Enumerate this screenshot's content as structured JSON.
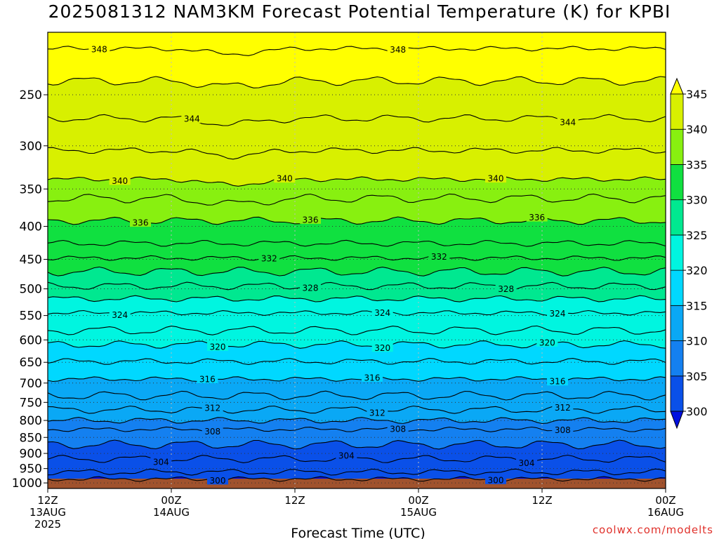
{
  "title": "2025081312 NAM3KM Forecast Potential Temperature (K) for KPBI",
  "credit": "coolwx.com/modelts",
  "chart_data": {
    "type": "heatmap",
    "title": "2025081312 NAM3KM Forecast Potential Temperature (K) for KPBI",
    "xlabel": "Forecast Time (UTC)",
    "ylabel": "",
    "x_ticks": [
      {
        "hour": 0,
        "lines": [
          "12Z",
          "13AUG",
          "2025"
        ]
      },
      {
        "hour": 12,
        "lines": [
          "00Z",
          "14AUG"
        ]
      },
      {
        "hour": 24,
        "lines": [
          "12Z"
        ]
      },
      {
        "hour": 36,
        "lines": [
          "00Z",
          "15AUG"
        ]
      },
      {
        "hour": 48,
        "lines": [
          "12Z"
        ]
      },
      {
        "hour": 60,
        "lines": [
          "00Z",
          "16AUG"
        ]
      }
    ],
    "xlim": [
      0,
      60
    ],
    "y_ticks": [
      250,
      300,
      350,
      400,
      450,
      500,
      550,
      600,
      650,
      700,
      750,
      800,
      850,
      900,
      950,
      1000
    ],
    "ylim": [
      1020,
      200
    ],
    "y_scale": "log-pressure",
    "grid": true,
    "colorbar": {
      "levels": [
        300,
        305,
        310,
        315,
        320,
        325,
        330,
        335,
        340,
        345
      ],
      "colors": [
        "#0010e0",
        "#0a50e8",
        "#1480f0",
        "#0aa8f5",
        "#00d8ff",
        "#00f5e0",
        "#00e890",
        "#10e040",
        "#88f010",
        "#d8f000",
        "#ffff00"
      ],
      "placement": "right"
    },
    "contour_interval": 2,
    "contours": [
      {
        "value": 300,
        "p": 986,
        "labels": [
          {
            "hour": 16.5,
            "text": "300"
          },
          {
            "hour": 43.5,
            "text": "300"
          }
        ]
      },
      {
        "value": 302,
        "p": 962,
        "labels": []
      },
      {
        "value": 304,
        "p": 918,
        "labels": [
          {
            "hour": 11,
            "text": "304"
          },
          {
            "hour": 29,
            "text": "304"
          },
          {
            "hour": 46.5,
            "text": "304"
          }
        ]
      },
      {
        "value": 306,
        "p": 872,
        "labels": []
      },
      {
        "value": 308,
        "p": 826,
        "labels": [
          {
            "hour": 16,
            "text": "308"
          },
          {
            "hour": 34,
            "text": "308"
          },
          {
            "hour": 50,
            "text": "308"
          }
        ]
      },
      {
        "value": 310,
        "p": 800,
        "labels": []
      },
      {
        "value": 312,
        "p": 770,
        "labels": [
          {
            "hour": 16,
            "text": "312"
          },
          {
            "hour": 32,
            "text": "312"
          },
          {
            "hour": 50,
            "text": "312"
          }
        ]
      },
      {
        "value": 314,
        "p": 732,
        "labels": []
      },
      {
        "value": 316,
        "p": 690,
        "labels": [
          {
            "hour": 15.5,
            "text": "316"
          },
          {
            "hour": 31.5,
            "text": "316"
          },
          {
            "hour": 49.5,
            "text": "316"
          }
        ]
      },
      {
        "value": 318,
        "p": 648,
        "labels": []
      },
      {
        "value": 320,
        "p": 610,
        "labels": [
          {
            "hour": 16.5,
            "text": "320"
          },
          {
            "hour": 32.5,
            "text": "320"
          },
          {
            "hour": 48.5,
            "text": "320"
          }
        ]
      },
      {
        "value": 322,
        "p": 580,
        "labels": []
      },
      {
        "value": 324,
        "p": 545,
        "labels": [
          {
            "hour": 7,
            "text": "324"
          },
          {
            "hour": 32.5,
            "text": "324"
          },
          {
            "hour": 49.5,
            "text": "324"
          }
        ]
      },
      {
        "value": 326,
        "p": 518,
        "labels": []
      },
      {
        "value": 328,
        "p": 495,
        "labels": [
          {
            "hour": 25.5,
            "text": "328"
          },
          {
            "hour": 44.5,
            "text": "328"
          }
        ]
      },
      {
        "value": 330,
        "p": 470,
        "labels": []
      },
      {
        "value": 332,
        "p": 448,
        "labels": [
          {
            "hour": 21.5,
            "text": "332"
          },
          {
            "hour": 38,
            "text": "332"
          }
        ]
      },
      {
        "value": 334,
        "p": 425,
        "labels": []
      },
      {
        "value": 336,
        "p": 392,
        "labels": [
          {
            "hour": 9,
            "text": "336"
          },
          {
            "hour": 25.5,
            "text": "336"
          },
          {
            "hour": 47.5,
            "text": "336"
          }
        ]
      },
      {
        "value": 338,
        "p": 362,
        "labels": []
      },
      {
        "value": 340,
        "p": 338,
        "labels": [
          {
            "hour": 7,
            "text": "340"
          },
          {
            "hour": 23,
            "text": "340"
          },
          {
            "hour": 43.5,
            "text": "340"
          }
        ]
      },
      {
        "value": 342,
        "p": 305,
        "labels": []
      },
      {
        "value": 344,
        "p": 272,
        "labels": [
          {
            "hour": 14,
            "text": "344"
          },
          {
            "hour": 50.5,
            "text": "344"
          }
        ]
      },
      {
        "value": 346,
        "p": 238,
        "labels": []
      },
      {
        "value": 348,
        "p": 212,
        "labels": [
          {
            "hour": 5,
            "text": "348"
          },
          {
            "hour": 34,
            "text": "348"
          }
        ]
      }
    ]
  }
}
